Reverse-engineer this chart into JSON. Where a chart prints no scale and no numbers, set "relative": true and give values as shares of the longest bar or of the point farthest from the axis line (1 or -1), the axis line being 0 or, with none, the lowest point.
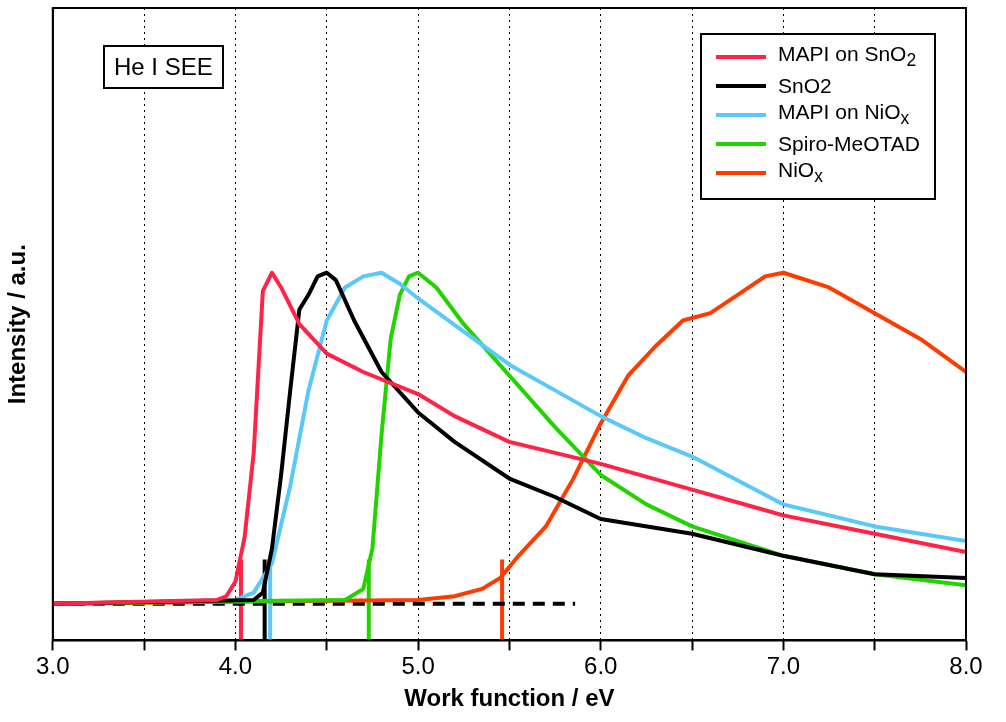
{
  "chart_data": {
    "type": "line",
    "relative": true,
    "xlabel": "Work function / eV",
    "ylabel": "Intensity / a.u.",
    "xlim": [
      3.0,
      8.0
    ],
    "xticks": [
      {
        "value": 3,
        "label": "3.0"
      },
      {
        "value": 3.5,
        "label": null
      },
      {
        "value": 4,
        "label": "4.0"
      },
      {
        "value": 4.5,
        "label": null
      },
      {
        "value": 5,
        "label": "5.0"
      },
      {
        "value": 5.5,
        "label": null
      },
      {
        "value": 6,
        "label": "6.0"
      },
      {
        "value": 6.5,
        "label": null
      },
      {
        "value": 7,
        "label": "7.0"
      },
      {
        "value": 7.5,
        "label": null
      },
      {
        "value": 8,
        "label": "8.0"
      }
    ],
    "grid": "x",
    "legend": "top right",
    "marker": "none",
    "line_style": "solid",
    "annotations": [
      "He I SEE"
    ],
    "series": [
      {
        "name": "MAPI on SnO$_{2}$",
        "color": "#ff2348",
        "x": [
          3.0,
          3.9,
          3.95,
          4.0,
          4.05,
          4.1,
          4.15,
          4.2,
          4.25,
          4.35,
          4.5,
          4.7,
          5.0,
          5.2,
          5.5,
          5.75,
          6.0,
          6.5,
          7.0,
          7.5,
          8.0
        ],
        "values": [
          0.1,
          0.11,
          0.12,
          0.16,
          0.28,
          0.51,
          0.95,
          1,
          0.96,
          0.86,
          0.78,
          0.73,
          0.67,
          0.61,
          0.54,
          0.51,
          0.48,
          0.41,
          0.34,
          0.29,
          0.24
        ]
      },
      {
        "name": "SnO2",
        "color": "#000000",
        "x": [
          3.0,
          4.1,
          4.15,
          4.2,
          4.25,
          4.3,
          4.35,
          4.4,
          4.45,
          4.5,
          4.55,
          4.65,
          4.8,
          5.0,
          5.2,
          5.5,
          5.75,
          6.0,
          6.5,
          7.0,
          7.5,
          8.0
        ],
        "values": [
          0.1,
          0.11,
          0.13,
          0.25,
          0.45,
          0.68,
          0.9,
          0.94,
          0.99,
          1,
          0.98,
          0.87,
          0.73,
          0.62,
          0.54,
          0.44,
          0.39,
          0.33,
          0.29,
          0.23,
          0.18,
          0.17
        ]
      },
      {
        "name": "MAPI on NiO$_{x}$",
        "color": "#5ac8fa",
        "x": [
          4.0,
          4.1,
          4.2,
          4.3,
          4.4,
          4.5,
          4.6,
          4.7,
          4.8,
          4.9,
          5.0,
          5.25,
          5.5,
          5.75,
          6.0,
          6.25,
          6.5,
          7.0,
          7.5,
          8.0
        ],
        "values": [
          0.11,
          0.13,
          0.21,
          0.42,
          0.68,
          0.87,
          0.96,
          0.99,
          1,
          0.97,
          0.93,
          0.84,
          0.75,
          0.68,
          0.61,
          0.55,
          0.5,
          0.37,
          0.31,
          0.27
        ]
      },
      {
        "name": "Spiro-MeOTAD",
        "color": "#22d300",
        "x": [
          3.0,
          4.6,
          4.7,
          4.75,
          4.8,
          4.85,
          4.9,
          4.95,
          5.0,
          5.1,
          5.25,
          5.5,
          5.75,
          6.0,
          6.25,
          6.5,
          7.0,
          7.5,
          8.0
        ],
        "values": [
          0.1,
          0.11,
          0.14,
          0.25,
          0.56,
          0.82,
          0.94,
          0.99,
          1,
          0.96,
          0.86,
          0.72,
          0.58,
          0.45,
          0.37,
          0.31,
          0.23,
          0.18,
          0.15
        ]
      },
      {
        "name": "NiO$_{x}$",
        "color": "#ff3c00",
        "x": [
          3.0,
          5.0,
          5.2,
          5.35,
          5.45,
          5.55,
          5.7,
          5.85,
          6.0,
          6.15,
          6.3,
          6.45,
          6.6,
          6.75,
          6.9,
          7.0,
          7.25,
          7.5,
          7.75,
          8.0
        ],
        "values": [
          0.1,
          0.11,
          0.12,
          0.14,
          0.17,
          0.23,
          0.31,
          0.44,
          0.59,
          0.72,
          0.8,
          0.87,
          0.89,
          0.94,
          0.99,
          1,
          0.96,
          0.89,
          0.82,
          0.73
        ]
      },
      {
        "color": "#000000",
        "line_style": "dashed",
        "x": [
          3.0,
          5.86
        ],
        "values": [
          0.1,
          0.1
        ]
      },
      {
        "color": "#ff2348",
        "x": [
          4.03,
          4.03
        ],
        "values": [
          0,
          0.22
        ]
      },
      {
        "color": "#000000",
        "x": [
          4.16,
          4.16
        ],
        "values": [
          0,
          0.22
        ]
      },
      {
        "color": "#5ac8fa",
        "x": [
          4.19,
          4.19
        ],
        "values": [
          0,
          0.22
        ]
      },
      {
        "color": "#22d300",
        "x": [
          4.73,
          4.73
        ],
        "values": [
          0,
          0.22
        ]
      },
      {
        "color": "#ff3c00",
        "x": [
          5.46,
          5.46
        ],
        "values": [
          0,
          0.22
        ]
      }
    ]
  }
}
